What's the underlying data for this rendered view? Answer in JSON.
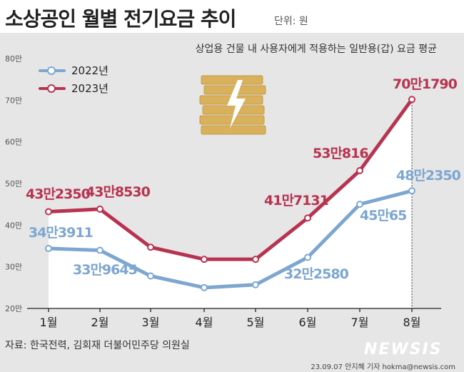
{
  "header": {
    "title": "소상공인 월별 전기요금 추이",
    "unit": "단위: 원"
  },
  "subtitle": "상업용 건물 내 사용자에게 적용하는 일반용(갑) 요금 평균",
  "source": "자료: 한국전력, 김회재 더불어민주당 의원실",
  "byline": "23.09.07 안지혜 기자 hokma@newsis.com",
  "watermark": "NEWSIS",
  "icon": "coin-stack-lightning-icon",
  "colors": {
    "series_2022": "#7da6d0",
    "series_2023": "#b83350"
  },
  "chart_data": {
    "type": "line",
    "categories": [
      "1월",
      "2월",
      "3월",
      "4월",
      "5월",
      "6월",
      "7월",
      "8월"
    ],
    "y_ticks": [
      "20만",
      "30만",
      "40만",
      "50만",
      "60만",
      "70만",
      "80만"
    ],
    "ylim": [
      200000,
      800000
    ],
    "legend_position": "top-left",
    "grid": false,
    "series": [
      {
        "name": "2022년",
        "values": [
          343911,
          339645,
          278000,
          250000,
          257000,
          322580,
          450065,
          482350
        ],
        "labels": [
          "34만3911",
          "33만9645",
          "",
          "",
          "",
          "32만2580",
          "45만65",
          "48만2350"
        ]
      },
      {
        "name": "2023년",
        "values": [
          432350,
          438530,
          347000,
          318000,
          318000,
          417131,
          530816,
          701790
        ],
        "labels": [
          "43만2350",
          "43만8530",
          "",
          "",
          "",
          "41만7131",
          "53만816",
          "70만1790"
        ]
      }
    ]
  }
}
